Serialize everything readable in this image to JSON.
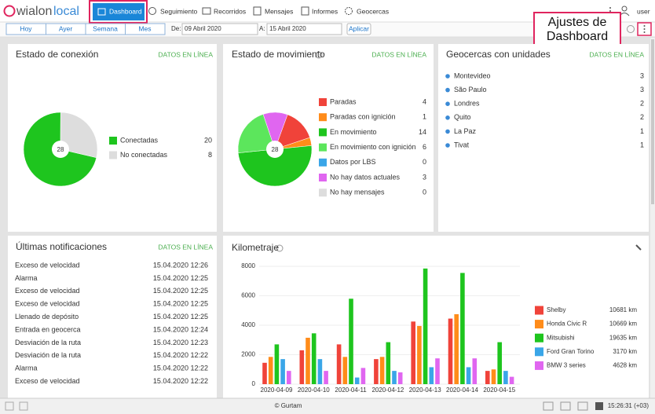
{
  "header": {
    "logo_primary": "wialon",
    "logo_secondary": "local",
    "nav": [
      "Dashboard",
      "Seguimiento",
      "Recorridos",
      "Mensajes",
      "Informes",
      "Geocercas"
    ],
    "user": "user"
  },
  "toolbar": {
    "periods": [
      "Hoy",
      "Ayer",
      "Semana",
      "Mes"
    ],
    "from_label": "De:",
    "from": "09 Abril 2020",
    "to_label": "A:",
    "to": "15 Abril 2020",
    "apply": "Aplicar"
  },
  "annotation": [
    "Ajustes de",
    "Dashboard"
  ],
  "widgets": {
    "connection": {
      "title": "Estado de conexión",
      "status": "DATOS EN LÍNEA",
      "total": 28,
      "items": [
        {
          "name": "Conectadas",
          "value": 20,
          "color": "#1ec51e"
        },
        {
          "name": "No conectadas",
          "value": 8,
          "color": "#dddddd"
        }
      ]
    },
    "movement": {
      "title": "Estado de movimiento",
      "status": "DATOS EN LÍNEA",
      "total": 28,
      "items": [
        {
          "name": "Paradas",
          "value": 4,
          "color": "#f0433a"
        },
        {
          "name": "Paradas con ignición",
          "value": 1,
          "color": "#ff8c1a"
        },
        {
          "name": "En movimiento",
          "value": 14,
          "color": "#1ec51e"
        },
        {
          "name": "En movimiento con ignición",
          "value": 6,
          "color": "#5ce65c"
        },
        {
          "name": "Datos por LBS",
          "value": 0,
          "color": "#3aa6e8"
        },
        {
          "name": "No hay datos actuales",
          "value": 3,
          "color": "#e066f0"
        },
        {
          "name": "No hay mensajes",
          "value": 0,
          "color": "#dddddd"
        }
      ]
    },
    "geofences": {
      "title": "Geocercas con unidades",
      "status": "DATOS EN LÍNEA",
      "items": [
        {
          "name": "Montevideo",
          "value": 3
        },
        {
          "name": "São Paulo",
          "value": 3
        },
        {
          "name": "Londres",
          "value": 2
        },
        {
          "name": "Quito",
          "value": 2
        },
        {
          "name": "La Paz",
          "value": 1
        },
        {
          "name": "Tivat",
          "value": 1
        }
      ]
    },
    "notifications": {
      "title": "Últimas notificaciones",
      "status": "DATOS EN LÍNEA",
      "rows": [
        [
          "Exceso de velocidad",
          "15.04.2020 12:26"
        ],
        [
          "Alarma",
          "15.04.2020 12:25"
        ],
        [
          "Exceso de velocidad",
          "15.04.2020 12:25"
        ],
        [
          "Exceso de velocidad",
          "15.04.2020 12:25"
        ],
        [
          "Llenado de depósito",
          "15.04.2020 12:25"
        ],
        [
          "Entrada en geocerca",
          "15.04.2020 12:24"
        ],
        [
          "Desviación de la ruta",
          "15.04.2020 12:23"
        ],
        [
          "Desviación de la ruta",
          "15.04.2020 12:22"
        ],
        [
          "Alarma",
          "15.04.2020 12:22"
        ],
        [
          "Exceso de velocidad",
          "15.04.2020 12:22"
        ]
      ]
    },
    "mileage": {
      "type": "bar",
      "title": "Kilometraje",
      "categories": [
        "2020-04-09",
        "2020-04-10",
        "2020-04-11",
        "2020-04-12",
        "2020-04-13",
        "2020-04-14",
        "2020-04-15"
      ],
      "ylim": [
        0,
        8000
      ],
      "yticks": [
        0,
        2000,
        4000,
        6000,
        8000
      ],
      "grid": true,
      "series": [
        {
          "name": "Shelby",
          "color": "#f0433a",
          "total": "10681 km",
          "values": [
            1450,
            2300,
            2700,
            1700,
            4250,
            4450,
            900
          ]
        },
        {
          "name": "Honda Civic R",
          "color": "#ff8c1a",
          "total": "10669 km",
          "values": [
            1850,
            3150,
            1850,
            1850,
            3950,
            4750,
            1000
          ]
        },
        {
          "name": "Mitsubishi",
          "color": "#1ec51e",
          "total": "19635 km",
          "values": [
            2700,
            3450,
            5800,
            2850,
            7850,
            7550,
            2850
          ]
        },
        {
          "name": "Ford Gran Torino",
          "color": "#3aa6e8",
          "total": "3170 km",
          "values": [
            1700,
            1700,
            450,
            900,
            1150,
            1150,
            900
          ]
        },
        {
          "name": "BMW 3 series",
          "color": "#e066f0",
          "total": "4628 km",
          "values": [
            900,
            900,
            1100,
            800,
            1750,
            1750,
            500
          ]
        }
      ]
    }
  },
  "footer": {
    "copyright": "© Gurtam",
    "time": "15:26:31 (+03)"
  }
}
